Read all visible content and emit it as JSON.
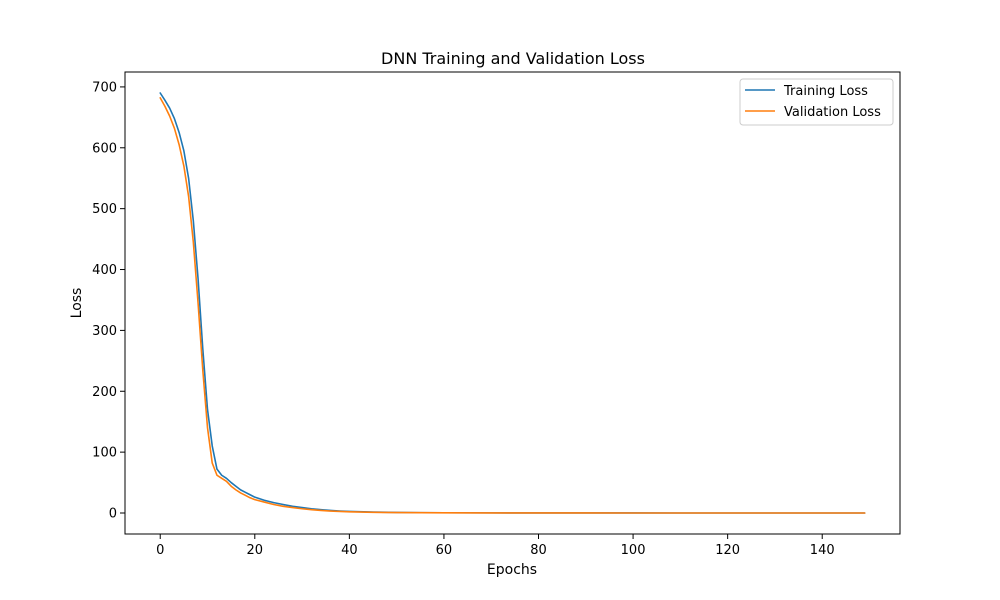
{
  "chart_data": {
    "type": "line",
    "title": "DNN Training and Validation Loss",
    "xlabel": "Epochs",
    "ylabel": "Loss",
    "xlim": [
      -7.45,
      156.45
    ],
    "ylim": [
      -34.5,
      724.5
    ],
    "xticks": [
      0,
      20,
      40,
      60,
      80,
      100,
      120,
      140
    ],
    "yticks": [
      0,
      100,
      200,
      300,
      400,
      500,
      600,
      700
    ],
    "grid": false,
    "legend_position": "upper right",
    "x": [
      0,
      1,
      2,
      3,
      4,
      5,
      6,
      7,
      8,
      9,
      10,
      11,
      12,
      13,
      14,
      15,
      16,
      17,
      18,
      19,
      20,
      22,
      24,
      26,
      28,
      30,
      32,
      34,
      36,
      38,
      40,
      45,
      50,
      55,
      60,
      70,
      80,
      90,
      100,
      110,
      120,
      130,
      140,
      149
    ],
    "series": [
      {
        "name": "Training Loss",
        "color": "#1f77b4",
        "values": [
          690,
          678,
          665,
          648,
          625,
          595,
          550,
          480,
          385,
          270,
          170,
          110,
          72,
          62,
          57,
          50,
          44,
          38,
          34,
          30,
          26,
          21,
          17,
          14,
          11,
          9,
          7,
          5.5,
          4.3,
          3.3,
          2.6,
          1.5,
          0.9,
          0.6,
          0.4,
          0.2,
          0.1,
          0.05,
          0.03,
          0.02,
          0.01,
          0.01,
          0.01,
          0.01
        ]
      },
      {
        "name": "Validation Loss",
        "color": "#ff7f0e",
        "values": [
          682,
          668,
          652,
          632,
          605,
          570,
          520,
          445,
          345,
          235,
          140,
          82,
          62,
          57,
          52,
          44,
          38,
          33,
          29,
          25,
          22,
          18,
          14,
          11,
          9,
          7,
          5.5,
          4.2,
          3.2,
          2.5,
          1.9,
          1.1,
          0.7,
          0.45,
          0.3,
          0.15,
          0.08,
          0.04,
          0.02,
          0.01,
          0.01,
          0.01,
          0.01,
          0.01
        ]
      }
    ]
  }
}
